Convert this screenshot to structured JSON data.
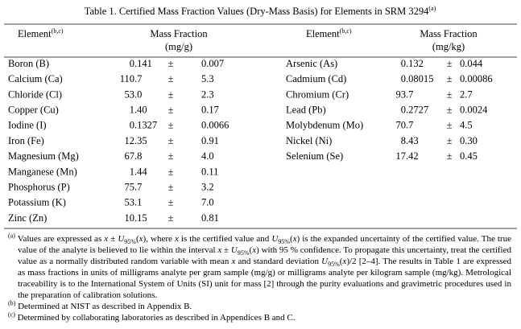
{
  "title": {
    "text": "Table 1.  Certified Mass Fraction Values (Dry-Mass Basis) for Elements in SRM 3294",
    "note": "(a)"
  },
  "tables": [
    {
      "header": {
        "element": "Element",
        "element_note": "(b,c)",
        "quantity": "Mass Fraction",
        "unit": "(mg/g)"
      },
      "rows": [
        {
          "element": "Boron (B)",
          "value": "0.141",
          "pm": "±",
          "uncertainty": "0.007"
        },
        {
          "element": "Calcium (Ca)",
          "value": "110.7",
          "pm": "±",
          "uncertainty": "5.3"
        },
        {
          "element": "Chloride (Cl)",
          "value": "53.0",
          "pm": "±",
          "uncertainty": "2.3"
        },
        {
          "element": "Copper (Cu)",
          "value": "1.40",
          "pm": "±",
          "uncertainty": "0.17"
        },
        {
          "element": "Iodine (I)",
          "value": "0.1327",
          "pm": "±",
          "uncertainty": "0.0066"
        },
        {
          "element": "Iron (Fe)",
          "value": "12.35",
          "pm": "±",
          "uncertainty": "0.91"
        },
        {
          "element": "Magnesium (Mg)",
          "value": "67.8",
          "pm": "±",
          "uncertainty": "4.0"
        },
        {
          "element": "Manganese (Mn)",
          "value": "1.44",
          "pm": "±",
          "uncertainty": "0.11"
        },
        {
          "element": "Phosphorus (P)",
          "value": "75.7",
          "pm": "±",
          "uncertainty": "3.2"
        },
        {
          "element": "Potassium (K)",
          "value": "53.1",
          "pm": "±",
          "uncertainty": "7.0"
        },
        {
          "element": "Zinc (Zn)",
          "value": "10.15",
          "pm": "±",
          "uncertainty": "0.81"
        }
      ]
    },
    {
      "header": {
        "element": "Element",
        "element_note": "(b,c)",
        "quantity": "Mass Fraction",
        "unit": "(mg/kg)"
      },
      "rows": [
        {
          "element": "Arsenic (As)",
          "value": "0.132",
          "pm": "±",
          "uncertainty": "0.044"
        },
        {
          "element": "Cadmium (Cd)",
          "value": "0.08015",
          "pm": "±",
          "uncertainty": "0.00086"
        },
        {
          "element": "Chromium (Cr)",
          "value": "93.7",
          "pm": "±",
          "uncertainty": "2.7"
        },
        {
          "element": "Lead (Pb)",
          "value": "0.2727",
          "pm": "±",
          "uncertainty": "0.0024"
        },
        {
          "element": "Molybdenum (Mo)",
          "value": "70.7",
          "pm": "±",
          "uncertainty": "4.5"
        },
        {
          "element": "Nickel (Ni)",
          "value": "8.43",
          "pm": "±",
          "uncertainty": "0.30"
        },
        {
          "element": "Selenium (Se)",
          "value": "17.42",
          "pm": "±",
          "uncertainty": "0.45"
        }
      ]
    }
  ],
  "footnotes": [
    {
      "segments": [
        {
          "text": "(a)",
          "style": "sup"
        },
        {
          "text": " Values are expressed as "
        },
        {
          "text": "x",
          "style": "i"
        },
        {
          "text": " ± "
        },
        {
          "text": "U",
          "style": "i"
        },
        {
          "text": "95%",
          "style": "sub"
        },
        {
          "text": "("
        },
        {
          "text": "x",
          "style": "i"
        },
        {
          "text": "), where "
        },
        {
          "text": "x",
          "style": "i"
        },
        {
          "text": " is the certified value and "
        },
        {
          "text": "U",
          "style": "i"
        },
        {
          "text": "95%",
          "style": "sub"
        },
        {
          "text": "("
        },
        {
          "text": "x",
          "style": "i"
        },
        {
          "text": ") is the expanded uncertainty of the certified value. The true value of the analyte is believed to lie within the interval "
        },
        {
          "text": "x",
          "style": "i"
        },
        {
          "text": " ± "
        },
        {
          "text": "U",
          "style": "i"
        },
        {
          "text": "95%",
          "style": "sub"
        },
        {
          "text": "("
        },
        {
          "text": "x",
          "style": "i"
        },
        {
          "text": ") with 95 % confidence. To propagate this uncertainty, treat the certified value as a normally distributed random variable with mean "
        },
        {
          "text": "x",
          "style": "i"
        },
        {
          "text": " and standard deviation "
        },
        {
          "text": "U",
          "style": "i"
        },
        {
          "text": "95%",
          "style": "sub"
        },
        {
          "text": "("
        },
        {
          "text": "x",
          "style": "i"
        },
        {
          "text": ")/2 [2–4]. The results in Table 1 are expressed as mass fractions in units of milligrams analyte per gram sample (mg/g) or milligrams analyte per kilogram sample (mg/kg). Metrological traceability is to the International System of Units (SI) unit for mass [2] through the purity evaluations and gravimetric procedures used in the preparation of calibration solutions."
        }
      ]
    },
    {
      "segments": [
        {
          "text": "(b)",
          "style": "sup"
        },
        {
          "text": " Determined at NIST as described in Appendix B."
        }
      ]
    },
    {
      "segments": [
        {
          "text": "(c)",
          "style": "sup"
        },
        {
          "text": " Determined by collaborating laboratories as described in Appendices B and C."
        }
      ]
    }
  ]
}
